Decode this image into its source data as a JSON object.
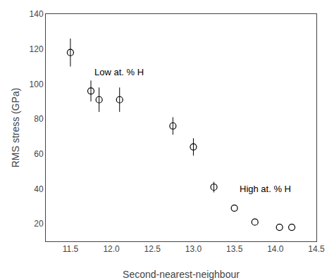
{
  "chart_data": {
    "type": "scatter",
    "x": [
      11.5,
      11.75,
      11.85,
      12.1,
      12.75,
      13.0,
      13.25,
      13.5,
      13.75,
      14.05,
      14.2
    ],
    "values": [
      118,
      96,
      91,
      91,
      76,
      64,
      41,
      29,
      21,
      18,
      18
    ],
    "yerr": [
      8,
      6,
      7,
      7,
      5,
      5,
      3,
      0,
      0,
      0,
      0
    ],
    "color": "black",
    "marker": "circle-open",
    "xlabel": "Second-nearest-neighbour",
    "ylabel": "RMS stress (GPa)",
    "annotations": [
      {
        "text": "Low at. % H",
        "x": 11.78,
        "y": 103
      },
      {
        "text": "High at. % H",
        "x": 13.55,
        "y": 36
      }
    ],
    "xlim": [
      11.2,
      14.5
    ],
    "ylim": [
      10,
      140
    ],
    "xticks": [
      11.5,
      {
        "value": 12.0,
        "label": "12.0"
      },
      12.5,
      {
        "value": 13.0,
        "label": "13.0"
      },
      13.5,
      {
        "value": 14.0,
        "label": "14.0"
      },
      14.5
    ],
    "yticks": [
      20,
      40,
      60,
      80,
      100,
      120,
      140
    ],
    "grid": false
  }
}
